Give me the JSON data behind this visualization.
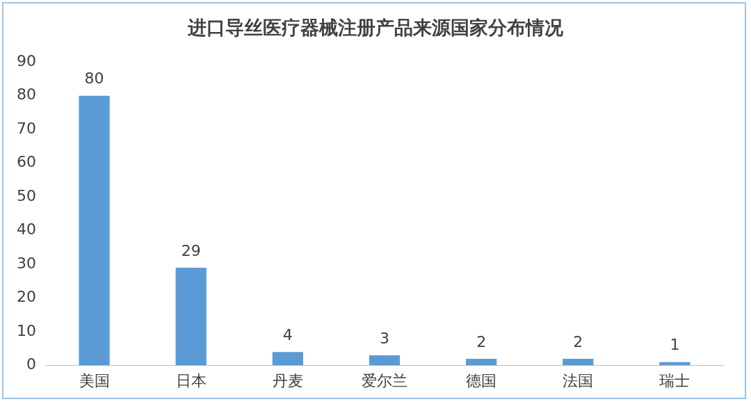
{
  "chart_data": {
    "type": "bar",
    "title": "进口导丝医疗器械注册产品来源国家分布情况",
    "categories": [
      "美国",
      "日本",
      "丹麦",
      "爱尔兰",
      "德国",
      "法国",
      "瑞士"
    ],
    "values": [
      80,
      29,
      4,
      3,
      2,
      2,
      1
    ],
    "color": "#5b9bd5",
    "ylim": [
      0,
      90
    ],
    "yticks": [
      0,
      10,
      20,
      30,
      40,
      50,
      60,
      70,
      80,
      90
    ],
    "grid": false,
    "legend": false,
    "data_labels": true
  }
}
